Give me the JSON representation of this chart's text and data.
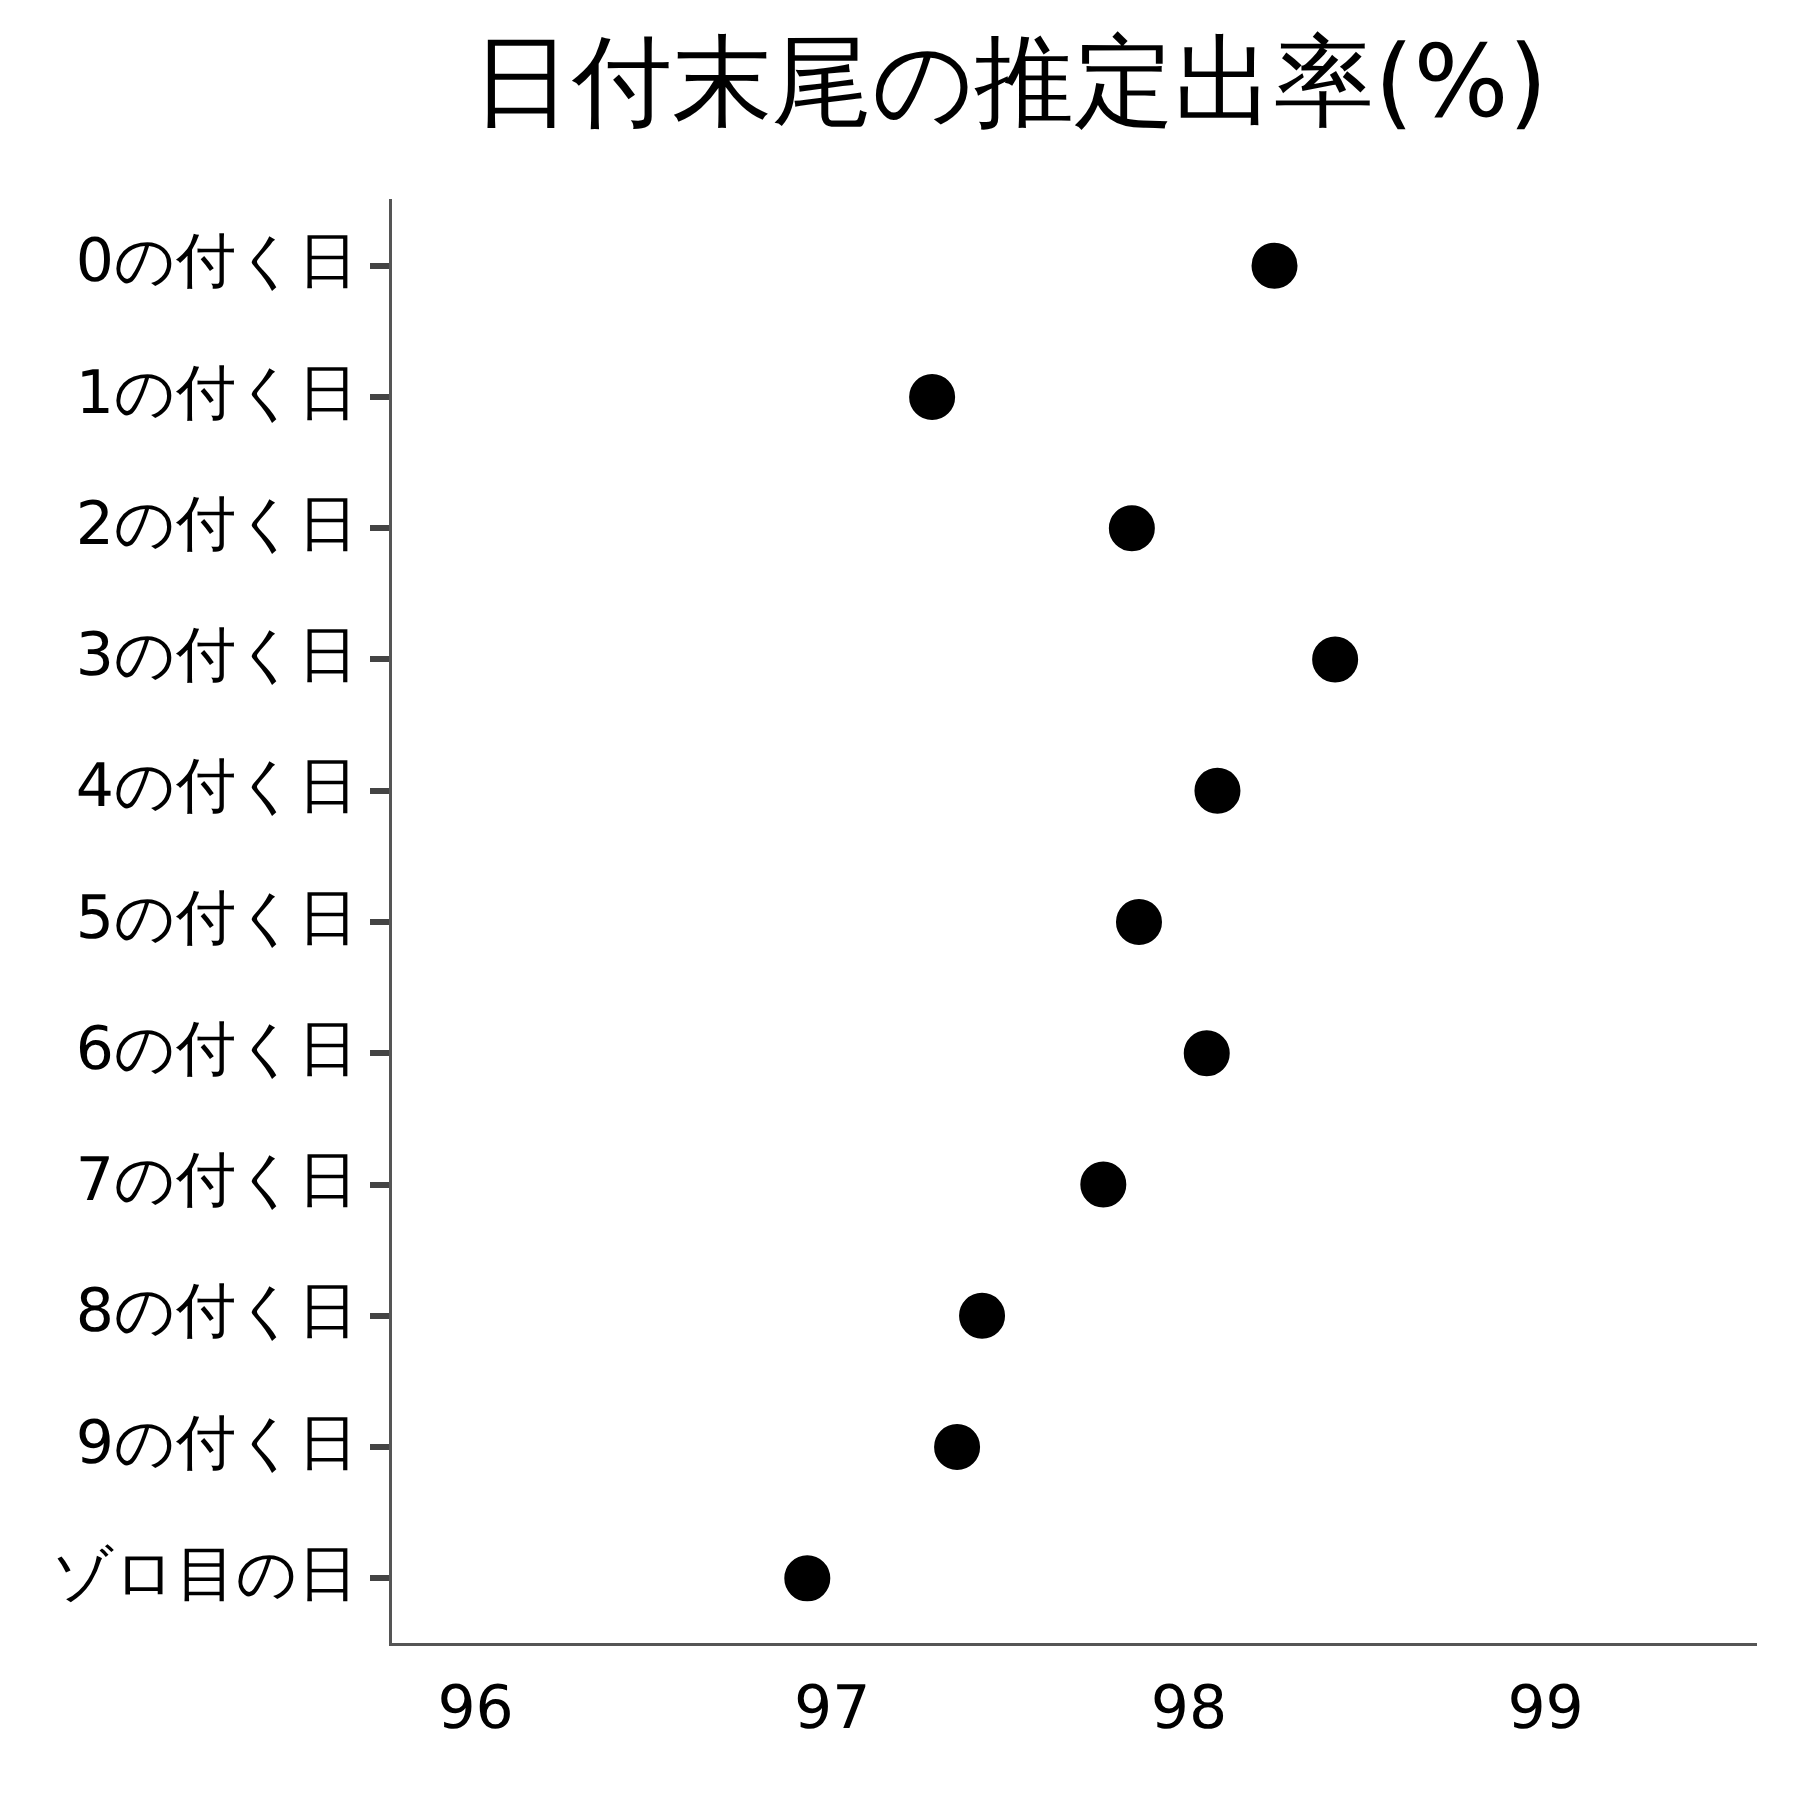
{
  "chart_data": {
    "type": "scatter",
    "title": "日付末尾の推定出率(%)",
    "categories": [
      "0の付く日",
      "1の付く日",
      "2の付く日",
      "3の付く日",
      "4の付く日",
      "5の付く日",
      "6の付く日",
      "7の付く日",
      "8の付く日",
      "9の付く日",
      "ゾロ目の日"
    ],
    "values": [
      98.24,
      97.28,
      97.84,
      98.41,
      98.08,
      97.86,
      98.05,
      97.76,
      97.42,
      97.35,
      96.93
    ],
    "color": "#000000",
    "orientation": "horizontal",
    "marker": "circle",
    "xlim": [
      95.76,
      99.59
    ],
    "xticks": [
      96,
      97,
      98,
      99
    ],
    "grid": false,
    "legend": false
  }
}
